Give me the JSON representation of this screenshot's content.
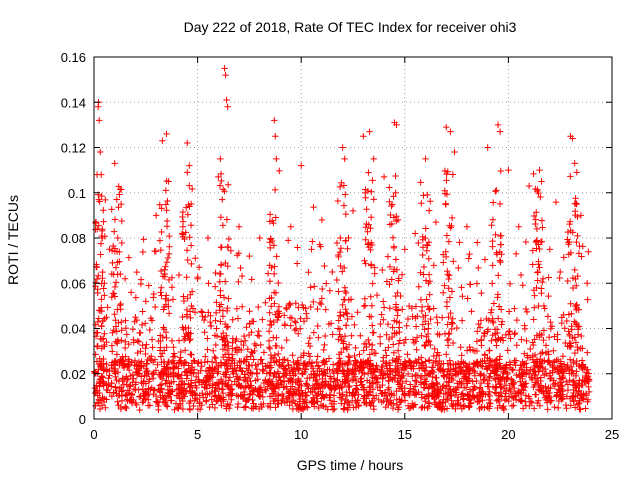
{
  "chart_data": {
    "type": "scatter",
    "title": "Day 222 of 2018, Rate Of TEC Index for receiver ohi3",
    "xlabel": "GPS time / hours",
    "ylabel": "ROTI / TECUs",
    "xlim": [
      0,
      25
    ],
    "ylim": [
      0,
      0.16
    ],
    "xticks": [
      0,
      5,
      10,
      15,
      20,
      25
    ],
    "xtick_labels": [
      "0",
      "5",
      "10",
      "15",
      "20",
      "25"
    ],
    "yticks": [
      0,
      0.02,
      0.04,
      0.06,
      0.08,
      0.1,
      0.12,
      0.14,
      0.16
    ],
    "ytick_labels": [
      "0",
      "0.02",
      "0.04",
      "0.06",
      "0.08",
      "0.1",
      "0.12",
      "0.14",
      "0.16"
    ],
    "grid": true,
    "marker": "+",
    "marker_color": "#ff0000",
    "data_range_hours": [
      0,
      23.9
    ],
    "series": [
      {
        "name": "ROTI",
        "points": [
          [
            0.1,
            0.012
          ],
          [
            0.15,
            0.032
          ],
          [
            0.2,
            0.138
          ],
          [
            0.22,
            0.14
          ],
          [
            0.25,
            0.132
          ],
          [
            0.3,
            0.118
          ],
          [
            0.35,
            0.108
          ],
          [
            0.4,
            0.08
          ],
          [
            0.5,
            0.06
          ],
          [
            0.6,
            0.045
          ],
          [
            0.7,
            0.018
          ],
          [
            1.0,
            0.113
          ],
          [
            1.1,
            0.097
          ],
          [
            1.5,
            0.062
          ],
          [
            2.0,
            0.045
          ],
          [
            2.2,
            0.038
          ],
          [
            2.5,
            0.052
          ],
          [
            3.0,
            0.09
          ],
          [
            3.3,
            0.123
          ],
          [
            3.5,
            0.126
          ],
          [
            3.6,
            0.105
          ],
          [
            4.5,
            0.122
          ],
          [
            4.6,
            0.112
          ],
          [
            5.0,
            0.062
          ],
          [
            5.5,
            0.08
          ],
          [
            6.0,
            0.107
          ],
          [
            6.1,
            0.115
          ],
          [
            6.3,
            0.155
          ],
          [
            6.35,
            0.152
          ],
          [
            6.4,
            0.141
          ],
          [
            6.45,
            0.138
          ],
          [
            7.0,
            0.085
          ],
          [
            7.5,
            0.072
          ],
          [
            8.0,
            0.08
          ],
          [
            8.7,
            0.132
          ],
          [
            8.75,
            0.125
          ],
          [
            8.8,
            0.115
          ],
          [
            9.5,
            0.085
          ],
          [
            10.0,
            0.112
          ],
          [
            10.5,
            0.075
          ],
          [
            11.0,
            0.088
          ],
          [
            11.5,
            0.065
          ],
          [
            12.0,
            0.12
          ],
          [
            12.1,
            0.115
          ],
          [
            12.5,
            0.092
          ],
          [
            13.0,
            0.125
          ],
          [
            13.3,
            0.127
          ],
          [
            13.5,
            0.115
          ],
          [
            14.0,
            0.107
          ],
          [
            14.5,
            0.131
          ],
          [
            14.6,
            0.13
          ],
          [
            15.0,
            0.075
          ],
          [
            15.5,
            0.082
          ],
          [
            16.0,
            0.115
          ],
          [
            16.5,
            0.087
          ],
          [
            17.0,
            0.129
          ],
          [
            17.2,
            0.127
          ],
          [
            17.4,
            0.118
          ],
          [
            18.0,
            0.085
          ],
          [
            18.5,
            0.078
          ],
          [
            19.0,
            0.12
          ],
          [
            19.5,
            0.13
          ],
          [
            19.6,
            0.127
          ],
          [
            20.0,
            0.11
          ],
          [
            20.5,
            0.085
          ],
          [
            21.0,
            0.103
          ],
          [
            21.5,
            0.11
          ],
          [
            21.6,
            0.105
          ],
          [
            22.0,
            0.075
          ],
          [
            22.5,
            0.065
          ],
          [
            23.0,
            0.125
          ],
          [
            23.1,
            0.124
          ],
          [
            23.2,
            0.113
          ],
          [
            23.3,
            0.095
          ],
          [
            23.5,
            0.09
          ],
          [
            23.8,
            0.06
          ],
          [
            23.9,
            0.012
          ]
        ]
      }
    ]
  }
}
